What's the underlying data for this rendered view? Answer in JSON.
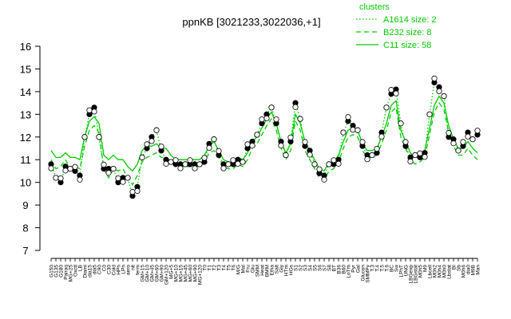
{
  "chart_data": {
    "type": "line",
    "title": "ppnKB [3021233,3022036,+1]",
    "xlabel": "",
    "ylabel": "",
    "ylim": [
      7,
      16
    ],
    "yticks": [
      7,
      8,
      9,
      10,
      11,
      12,
      13,
      14,
      15,
      16
    ],
    "grid": false,
    "legend": {
      "title": "clusters",
      "placement": "top-right",
      "entries": [
        {
          "label": "A1614 size: 2",
          "style": "dotted"
        },
        {
          "label": "B232 size: 8",
          "style": "dashed"
        },
        {
          "label": "C11 size: 58",
          "style": "solid"
        }
      ]
    },
    "categories": [
      "G150",
      "G135",
      "G180",
      "Pairaq",
      "MG+25",
      "Oxctl",
      "LB",
      "Diami",
      "dia15",
      "dia5",
      "C90",
      "C0",
      "C30",
      "Cold",
      "HPh",
      "LPh",
      "aero",
      "nit",
      "ferm",
      "GM+15",
      "GM+10",
      "GM+45",
      "GM+60",
      "GM+90",
      "GM+120",
      "MG+5",
      "MG+10",
      "MG+15",
      "MG+45",
      "MG+60",
      "MG+90",
      "MG+120",
      "T0",
      "T1",
      "T2",
      "T3",
      "T4",
      "T5",
      "T6",
      "M/G",
      "Mal",
      "Fru",
      "Glu",
      "SMM",
      "Heat",
      "BMM",
      "Etha",
      "Salt",
      "Gly",
      "HTm",
      "HGs",
      "S1",
      "S2",
      "S3",
      "S4",
      "S5",
      "S6",
      "S7",
      "S8",
      "BT",
      "B36",
      "B60",
      "LoTm",
      "Pyr",
      "Gal",
      "Glucon",
      "SMMPy",
      "T.3",
      "T.4",
      "T.5",
      "T.6",
      "BC",
      "Sw",
      "LPhT",
      "UNG",
      "LBGexp",
      "LBGstat",
      "M0h5",
      "M9",
      "Lbcell",
      "M0h2",
      "M0h4",
      "M0h0",
      "Lbstat",
      "BI",
      "Sb",
      "M0h6",
      "dia0",
      "M9B",
      "Man"
    ],
    "series": [
      {
        "name": "C11 size: 58",
        "style": "solid",
        "color": "#00cc00",
        "values": [
          11.4,
          11.1,
          11.1,
          11.3,
          11.1,
          11.1,
          11.0,
          12.0,
          12.7,
          12.9,
          12.6,
          11.2,
          11.0,
          11.2,
          11.0,
          11.0,
          10.7,
          10.5,
          10.8,
          11.4,
          11.6,
          11.6,
          11.7,
          11.5,
          11.5,
          11.2,
          11.0,
          11.0,
          11.0,
          11.0,
          11.0,
          11.0,
          11.2,
          11.6,
          11.8,
          11.4,
          11.0,
          10.9,
          10.9,
          11.1,
          11.0,
          11.3,
          11.8,
          12.0,
          12.4,
          12.8,
          13.1,
          12.6,
          11.8,
          11.3,
          11.7,
          13.0,
          12.6,
          11.8,
          11.4,
          11.0,
          10.6,
          10.5,
          10.9,
          10.9,
          11.2,
          11.8,
          12.3,
          12.4,
          12.3,
          11.7,
          11.4,
          11.4,
          11.5,
          12.0,
          12.6,
          13.4,
          13.6,
          12.3,
          11.8,
          11.3,
          11.1,
          11.2,
          11.4,
          12.4,
          13.4,
          13.8,
          13.5,
          12.5,
          11.9,
          11.5,
          11.5,
          11.8,
          11.5,
          11.3
        ]
      },
      {
        "name": "B232 size: 8",
        "style": "dashed",
        "color": "#00cc00",
        "values": [
          11.0,
          10.6,
          10.7,
          11.0,
          10.6,
          10.7,
          10.6,
          11.6,
          12.3,
          12.5,
          12.2,
          10.6,
          10.2,
          10.6,
          10.5,
          10.6,
          10.2,
          9.9,
          10.3,
          10.9,
          11.1,
          11.2,
          11.3,
          11.1,
          11.1,
          10.9,
          10.7,
          10.7,
          10.7,
          10.7,
          10.7,
          10.7,
          10.9,
          11.3,
          11.4,
          11.1,
          10.7,
          10.6,
          10.6,
          10.8,
          10.7,
          11.0,
          11.5,
          11.7,
          12.1,
          12.5,
          12.8,
          12.3,
          11.5,
          11.0,
          11.4,
          12.7,
          12.3,
          11.4,
          11.0,
          10.6,
          10.2,
          10.1,
          10.5,
          10.6,
          10.9,
          11.5,
          12.0,
          12.1,
          12.0,
          11.4,
          11.1,
          11.1,
          11.2,
          11.7,
          12.3,
          13.1,
          13.3,
          12.0,
          11.5,
          11.0,
          10.8,
          10.9,
          11.1,
          12.1,
          13.1,
          13.5,
          13.2,
          12.2,
          11.6,
          11.2,
          11.2,
          11.5,
          11.2,
          11.0
        ]
      },
      {
        "name": "A1614 size: 2",
        "style": "dotted",
        "color": "#00cc00",
        "values": [
          10.8,
          10.2,
          10.0,
          10.7,
          10.6,
          10.5,
          10.3,
          12.0,
          13.0,
          13.3,
          12.0,
          10.6,
          10.6,
          10.6,
          10.0,
          10.2,
          10.2,
          9.4,
          9.8,
          11.1,
          11.5,
          12.0,
          12.3,
          11.4,
          11.0,
          10.9,
          10.8,
          10.8,
          10.8,
          10.8,
          10.8,
          10.8,
          10.9,
          11.7,
          11.9,
          11.2,
          10.8,
          10.8,
          10.8,
          11.0,
          10.9,
          11.5,
          11.8,
          12.1,
          12.6,
          13.0,
          13.3,
          12.6,
          11.8,
          11.2,
          11.8,
          13.5,
          12.8,
          11.6,
          11.4,
          10.8,
          10.4,
          10.3,
          10.8,
          10.8,
          11.0,
          12.2,
          12.7,
          12.5,
          12.3,
          11.6,
          11.2,
          11.2,
          11.3,
          12.2,
          13.3,
          13.9,
          14.1,
          12.6,
          11.6,
          11.1,
          11.2,
          11.1,
          11.3,
          13.0,
          14.4,
          14.2,
          13.8,
          12.0,
          11.9,
          11.4,
          11.6,
          12.2,
          11.9,
          12.1
        ]
      }
    ]
  }
}
